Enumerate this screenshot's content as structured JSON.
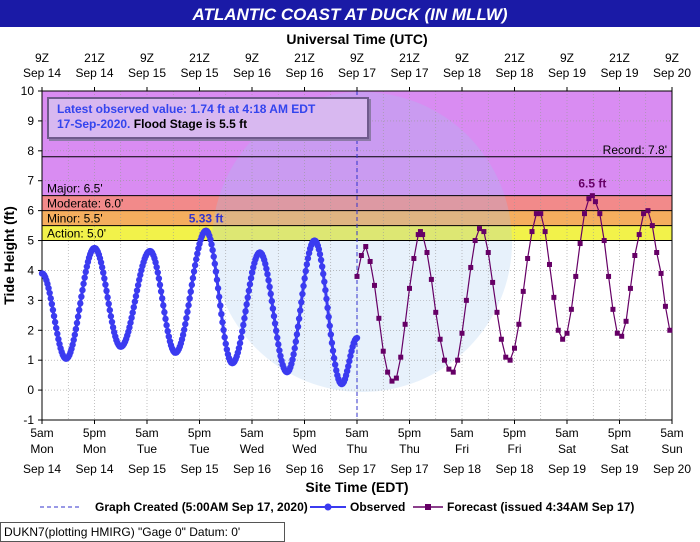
{
  "header": {
    "title": "ATLANTIC COAST AT DUCK (IN MLLW)"
  },
  "infobox": {
    "line1": "Latest observed value: 1.74 ft at 4:18 AM EDT",
    "line2_date": "17-Sep-2020.",
    "line2_flood": "Flood Stage is 5.5 ft"
  },
  "footer": {
    "station": "DUKN7(plotting HMIRG) \"Gage 0\" Datum: 0'"
  },
  "legend": {
    "created": "Graph Created (5:00AM Sep 17, 2020)",
    "observed": "Observed",
    "forecast": "Forecast (issued 4:34AM Sep 17)"
  },
  "colors": {
    "title_bg": "#1a1aa6",
    "major_zone": "#d98cf2",
    "moderate_zone": "#f28a8a",
    "minor_zone": "#f5ae5e",
    "action_zone": "#f2f24a",
    "plot_bg": "#ffffff",
    "observed": "#3b3bf0",
    "forecast": "#660066"
  },
  "chart_data": {
    "type": "line",
    "title": "ATLANTIC COAST AT DUCK (IN MLLW)",
    "xlabel": "Site Time (EDT)",
    "xlabel_top": "Universal Time (UTC)",
    "ylabel": "Tide Height (ft)",
    "x_unit": "hours after 5am Mon Sep 14 2020 (EDT)",
    "xlim": [
      0,
      144
    ],
    "ylim": [
      -1,
      10
    ],
    "y_ticks": [
      -1,
      0,
      1,
      2,
      3,
      4,
      5,
      6,
      7,
      8,
      9,
      10
    ],
    "grid": true,
    "legend_position": "bottom",
    "x_ticks_bottom": [
      {
        "x": 0,
        "time": "5am",
        "day": "Mon",
        "date": "Sep 14"
      },
      {
        "x": 12,
        "time": "5pm",
        "day": "Mon",
        "date": "Sep 14"
      },
      {
        "x": 24,
        "time": "5am",
        "day": "Tue",
        "date": "Sep 15"
      },
      {
        "x": 36,
        "time": "5pm",
        "day": "Tue",
        "date": "Sep 15"
      },
      {
        "x": 48,
        "time": "5am",
        "day": "Wed",
        "date": "Sep 16"
      },
      {
        "x": 60,
        "time": "5pm",
        "day": "Wed",
        "date": "Sep 16"
      },
      {
        "x": 72,
        "time": "5am",
        "day": "Thu",
        "date": "Sep 17"
      },
      {
        "x": 84,
        "time": "5pm",
        "day": "Thu",
        "date": "Sep 17"
      },
      {
        "x": 96,
        "time": "5am",
        "day": "Fri",
        "date": "Sep 18"
      },
      {
        "x": 108,
        "time": "5pm",
        "day": "Fri",
        "date": "Sep 18"
      },
      {
        "x": 120,
        "time": "5am",
        "day": "Sat",
        "date": "Sep 19"
      },
      {
        "x": 132,
        "time": "5pm",
        "day": "Sat",
        "date": "Sep 19"
      },
      {
        "x": 144,
        "time": "5am",
        "day": "Sun",
        "date": "Sep 20"
      }
    ],
    "x_ticks_top": [
      {
        "x": 0,
        "time": "9Z",
        "date": "Sep 14"
      },
      {
        "x": 12,
        "time": "21Z",
        "date": "Sep 14"
      },
      {
        "x": 24,
        "time": "9Z",
        "date": "Sep 15"
      },
      {
        "x": 36,
        "time": "21Z",
        "date": "Sep 15"
      },
      {
        "x": 48,
        "time": "9Z",
        "date": "Sep 16"
      },
      {
        "x": 60,
        "time": "21Z",
        "date": "Sep 16"
      },
      {
        "x": 72,
        "time": "9Z",
        "date": "Sep 17"
      },
      {
        "x": 84,
        "time": "21Z",
        "date": "Sep 17"
      },
      {
        "x": 96,
        "time": "9Z",
        "date": "Sep 18"
      },
      {
        "x": 108,
        "time": "21Z",
        "date": "Sep 18"
      },
      {
        "x": 120,
        "time": "9Z",
        "date": "Sep 19"
      },
      {
        "x": 132,
        "time": "21Z",
        "date": "Sep 19"
      },
      {
        "x": 144,
        "time": "9Z",
        "date": "Sep 20"
      }
    ],
    "flood_categories": [
      {
        "name": "Action",
        "label": "Action: 5.0'",
        "value": 5.0,
        "upper": 5.5
      },
      {
        "name": "Minor",
        "label": "Minor: 5.5'",
        "value": 5.5,
        "upper": 6.0
      },
      {
        "name": "Moderate",
        "label": "Moderate: 6.0'",
        "value": 6.0,
        "upper": 6.5
      },
      {
        "name": "Major",
        "label": "Major: 6.5'",
        "value": 6.5,
        "upper": 10
      }
    ],
    "record": {
      "label": "Record: 7.8'",
      "value": 7.8
    },
    "graph_created_x": 72,
    "annotations": [
      {
        "text": "5.33 ft",
        "x": 37.5,
        "y": 5.33,
        "series": "Observed"
      },
      {
        "text": "6.5 ft",
        "x": 125.8,
        "y": 6.5,
        "series": "Forecast"
      }
    ],
    "series": [
      {
        "name": "Observed",
        "peaks": [
          [
            0,
            3.9
          ],
          [
            5.5,
            1.05
          ],
          [
            12.0,
            4.75
          ],
          [
            18.0,
            1.45
          ],
          [
            24.7,
            4.65
          ],
          [
            30.5,
            1.25
          ],
          [
            37.5,
            5.33
          ],
          [
            43.5,
            0.9
          ],
          [
            49.8,
            4.6
          ],
          [
            56.0,
            0.6
          ],
          [
            62.3,
            5.0
          ],
          [
            68.5,
            0.2
          ],
          [
            72.0,
            1.74
          ]
        ]
      },
      {
        "name": "Forecast",
        "points": [
          [
            72.0,
            3.8
          ],
          [
            73.0,
            4.5
          ],
          [
            74.0,
            4.8
          ],
          [
            75.0,
            4.3
          ],
          [
            76.0,
            3.5
          ],
          [
            77.0,
            2.4
          ],
          [
            78.0,
            1.3
          ],
          [
            79.0,
            0.6
          ],
          [
            80.0,
            0.3
          ],
          [
            81.0,
            0.4
          ],
          [
            82.0,
            1.1
          ],
          [
            83.0,
            2.2
          ],
          [
            84.0,
            3.4
          ],
          [
            85.0,
            4.4
          ],
          [
            86.0,
            5.2
          ],
          [
            86.5,
            5.3
          ],
          [
            87.0,
            5.2
          ],
          [
            88.0,
            4.6
          ],
          [
            89.0,
            3.7
          ],
          [
            90.0,
            2.6
          ],
          [
            91.0,
            1.7
          ],
          [
            92.0,
            1.0
          ],
          [
            93.0,
            0.7
          ],
          [
            94.0,
            0.6
          ],
          [
            95.0,
            1.0
          ],
          [
            96.0,
            1.9
          ],
          [
            97.0,
            3.0
          ],
          [
            98.0,
            4.1
          ],
          [
            99.0,
            5.0
          ],
          [
            100.0,
            5.4
          ],
          [
            101.0,
            5.3
          ],
          [
            102.0,
            4.6
          ],
          [
            103.0,
            3.6
          ],
          [
            104.0,
            2.6
          ],
          [
            105.0,
            1.7
          ],
          [
            106.0,
            1.1
          ],
          [
            107.0,
            1.0
          ],
          [
            108.0,
            1.4
          ],
          [
            109.0,
            2.2
          ],
          [
            110.0,
            3.3
          ],
          [
            111.0,
            4.4
          ],
          [
            112.0,
            5.3
          ],
          [
            113.0,
            5.9
          ],
          [
            114.0,
            5.9
          ],
          [
            115.0,
            5.3
          ],
          [
            116.0,
            4.2
          ],
          [
            117.0,
            3.1
          ],
          [
            118.0,
            2.0
          ],
          [
            119.0,
            1.7
          ],
          [
            120.0,
            1.9
          ],
          [
            121.0,
            2.7
          ],
          [
            122.0,
            3.8
          ],
          [
            123.0,
            4.9
          ],
          [
            124.0,
            5.9
          ],
          [
            125.0,
            6.4
          ],
          [
            125.8,
            6.5
          ],
          [
            126.5,
            6.3
          ],
          [
            127.5,
            5.9
          ],
          [
            128.5,
            5.0
          ],
          [
            129.5,
            3.8
          ],
          [
            130.5,
            2.7
          ],
          [
            131.5,
            1.9
          ],
          [
            132.5,
            1.8
          ],
          [
            133.5,
            2.3
          ],
          [
            134.5,
            3.4
          ],
          [
            135.5,
            4.5
          ],
          [
            136.5,
            5.2
          ],
          [
            137.5,
            5.9
          ],
          [
            138.5,
            6.0
          ],
          [
            139.5,
            5.5
          ],
          [
            140.5,
            4.6
          ],
          [
            141.5,
            3.9
          ],
          [
            142.5,
            2.8
          ],
          [
            143.5,
            2.0
          ]
        ]
      }
    ]
  }
}
